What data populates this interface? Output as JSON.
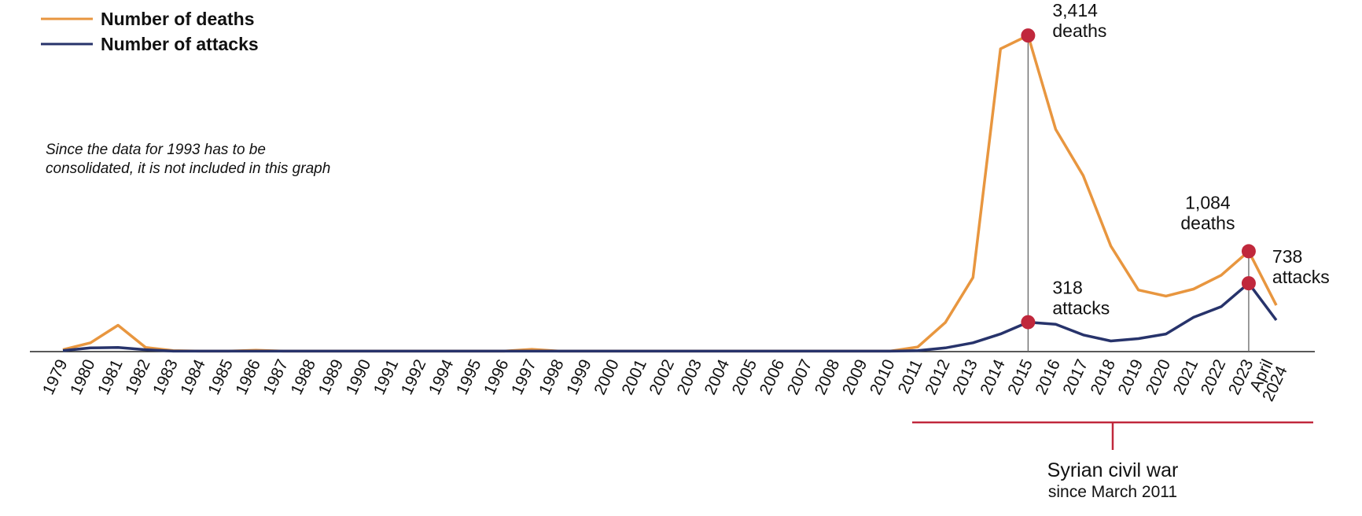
{
  "chart_data": {
    "type": "line",
    "legend": "top-left",
    "note": [
      "Since the data for 1993 has to be",
      "consolidated, it is not included in this graph"
    ],
    "bracket_title": "Syrian civil war",
    "bracket_subtitle": "since March 2011",
    "highlight_color": "#c0283c",
    "categories": [
      "1979",
      "1980",
      "1981",
      "1982",
      "1983",
      "1984",
      "1985",
      "1986",
      "1987",
      "1988",
      "1989",
      "1990",
      "1991",
      "1992",
      "1994",
      "1995",
      "1996",
      "1997",
      "1998",
      "1999",
      "2000",
      "2001",
      "2002",
      "2003",
      "2004",
      "2005",
      "2006",
      "2007",
      "2008",
      "2009",
      "2010",
      "2011",
      "2012",
      "2013",
      "2014",
      "2015",
      "2016",
      "2017",
      "2018",
      "2019",
      "2020",
      "2021",
      "2022",
      "2023",
      "April 2024"
    ],
    "ylim": [
      0,
      3500
    ],
    "series": [
      {
        "name": "Number of deaths",
        "color": "#e8963f",
        "values": [
          20,
          95,
          285,
          45,
          10,
          5,
          5,
          15,
          5,
          5,
          5,
          5,
          5,
          5,
          5,
          5,
          5,
          25,
          5,
          5,
          5,
          5,
          5,
          5,
          5,
          5,
          5,
          5,
          5,
          5,
          5,
          50,
          315,
          800,
          3270,
          3414,
          2400,
          1900,
          1140,
          665,
          600,
          675,
          825,
          1084,
          500
        ],
        "value_labels": [
          null,
          null,
          null,
          null,
          null,
          null,
          null,
          null,
          null,
          null,
          null,
          null,
          null,
          null,
          null,
          null,
          null,
          null,
          null,
          null,
          null,
          null,
          null,
          null,
          null,
          null,
          null,
          null,
          null,
          null,
          null,
          null,
          null,
          null,
          null,
          "3,414 deaths",
          null,
          null,
          null,
          null,
          null,
          null,
          null,
          "1,084 deaths",
          null
        ]
      },
      {
        "name": "Number of attacks",
        "color": "#27336b",
        "values": [
          10,
          40,
          45,
          20,
          5,
          5,
          5,
          5,
          5,
          5,
          5,
          5,
          5,
          5,
          5,
          5,
          5,
          5,
          5,
          5,
          5,
          5,
          5,
          5,
          5,
          5,
          5,
          5,
          5,
          5,
          5,
          10,
          40,
          95,
          190,
          318,
          295,
          180,
          115,
          140,
          190,
          370,
          485,
          738,
          340
        ],
        "value_labels": [
          null,
          null,
          null,
          null,
          null,
          null,
          null,
          null,
          null,
          null,
          null,
          null,
          null,
          null,
          null,
          null,
          null,
          null,
          null,
          null,
          null,
          null,
          null,
          null,
          null,
          null,
          null,
          null,
          null,
          null,
          null,
          null,
          null,
          null,
          null,
          "318 attacks",
          null,
          null,
          null,
          null,
          null,
          null,
          null,
          "738 attacks",
          null
        ]
      }
    ]
  }
}
